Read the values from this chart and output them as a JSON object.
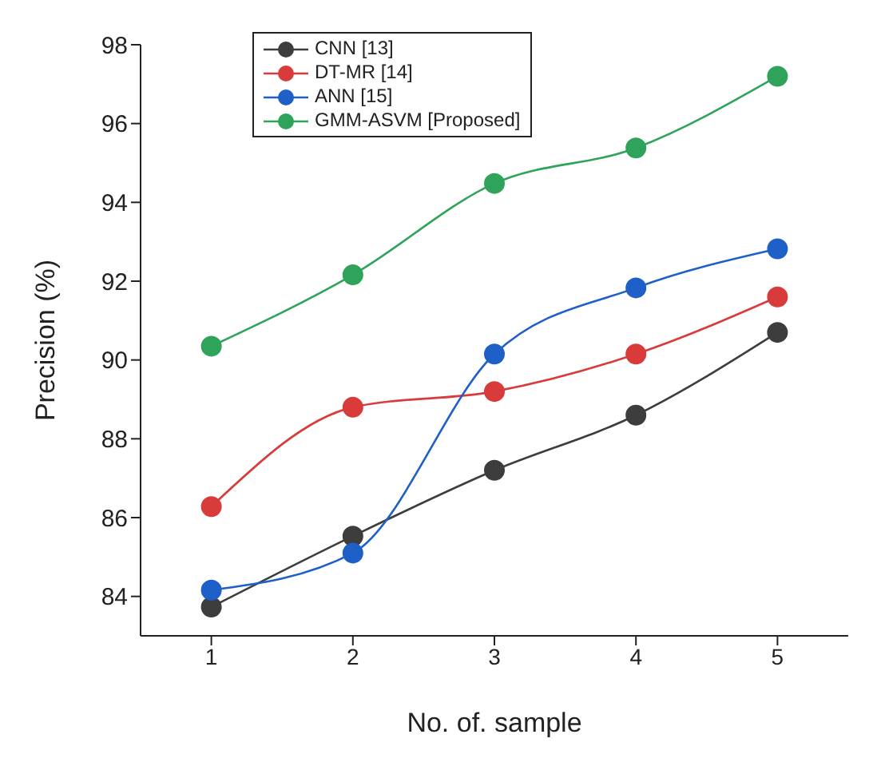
{
  "chart_data": {
    "type": "line",
    "xlabel": "No. of. sample",
    "ylabel": "Precision (%)",
    "x": [
      1,
      2,
      3,
      4,
      5
    ],
    "xlim": [
      0.5,
      5.5
    ],
    "xticks": [
      1,
      2,
      3,
      4,
      5
    ],
    "ylim": [
      83,
      98
    ],
    "yticks": [
      84,
      86,
      88,
      90,
      92,
      94,
      96,
      98
    ],
    "grid": false,
    "legend": "top left",
    "marker": "circle",
    "line_style": "solid",
    "series": [
      {
        "name": "CNN [13]",
        "color": "#3d3d3d",
        "values": [
          83.73,
          85.53,
          87.2,
          88.6,
          90.7
        ]
      },
      {
        "name": "DT-MR [14]",
        "color": "#d93a3a",
        "values": [
          86.28,
          88.8,
          89.2,
          90.15,
          91.6
        ]
      },
      {
        "name": "ANN [15]",
        "color": "#1f5fc8",
        "values": [
          84.16,
          85.1,
          90.15,
          91.83,
          92.82
        ]
      },
      {
        "name": "GMM-ASVM [Proposed]",
        "color": "#2fa35a",
        "values": [
          90.35,
          92.16,
          94.48,
          95.38,
          97.2
        ]
      }
    ]
  }
}
